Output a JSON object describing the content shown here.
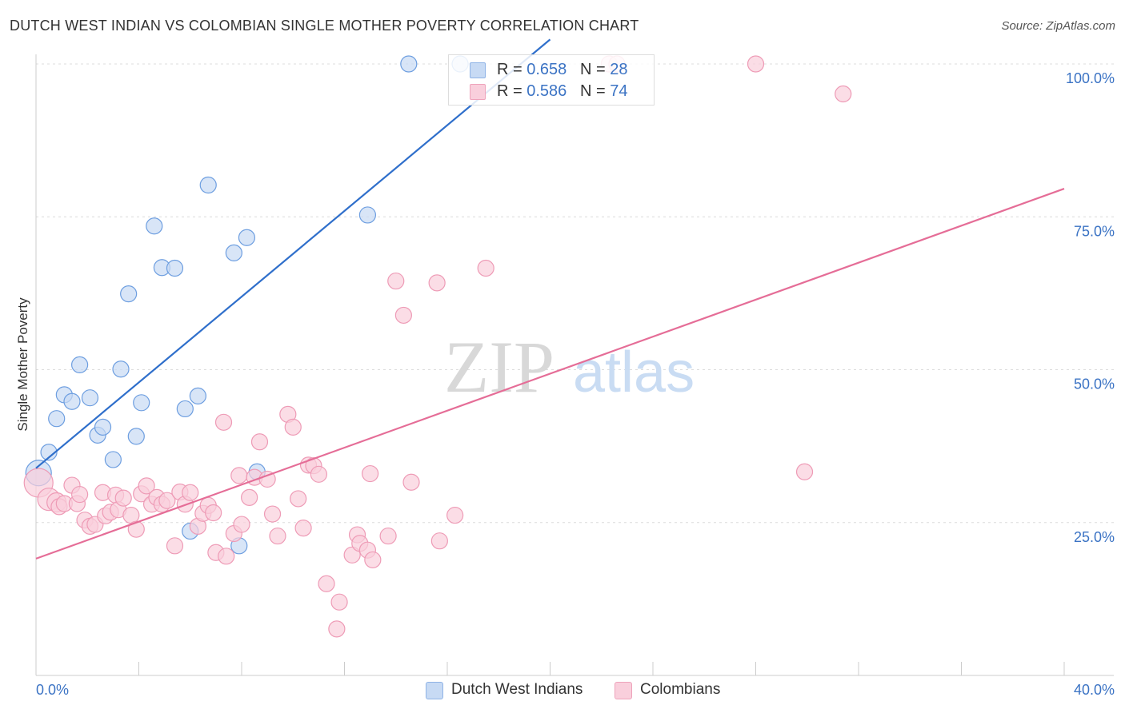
{
  "title": "DUTCH WEST INDIAN VS COLOMBIAN SINGLE MOTHER POVERTY CORRELATION CHART",
  "source": "Source: ZipAtlas.com",
  "watermark": {
    "zip": "ZIP",
    "atlas": "atlas"
  },
  "legend": {
    "r_label": "R =",
    "n_label": "N =",
    "rows": [
      {
        "r": "0.658",
        "n": "28",
        "color": "#adc8ee"
      },
      {
        "r": "0.586",
        "n": "74",
        "color": "#f4b6c8"
      }
    ]
  },
  "chart_data": {
    "type": "scatter",
    "title": "DUTCH WEST INDIAN VS COLOMBIAN SINGLE MOTHER POVERTY CORRELATION CHART",
    "xlabel": "",
    "ylabel": "Single Mother Poverty",
    "xlim": [
      0,
      40
    ],
    "ylim": [
      0,
      100
    ],
    "x_tick_labels": [
      "0.0%",
      "40.0%"
    ],
    "y_tick_labels": [
      "25.0%",
      "50.0%",
      "75.0%",
      "100.0%"
    ],
    "y_ticks": [
      25,
      50,
      75,
      100
    ],
    "grid": "horizontal dashed",
    "series": [
      {
        "name": "Dutch West Indians",
        "color": "#6d9ee0",
        "fill": "#c7daf4",
        "trend": {
          "x": [
            0,
            20.0
          ],
          "y": [
            33.9,
            104.0
          ],
          "color": "#2f6fcb"
        },
        "points": [
          [
            0.1,
            33.1,
            16
          ],
          [
            0.5,
            36.5,
            10
          ],
          [
            0.8,
            42.0,
            10
          ],
          [
            1.1,
            45.9,
            10
          ],
          [
            1.4,
            44.8,
            10
          ],
          [
            1.7,
            50.8,
            10
          ],
          [
            2.1,
            45.4,
            10
          ],
          [
            2.4,
            39.3,
            10
          ],
          [
            2.6,
            40.6,
            10
          ],
          [
            3.0,
            35.3,
            10
          ],
          [
            3.3,
            50.1,
            10
          ],
          [
            3.6,
            62.4,
            10
          ],
          [
            3.9,
            39.1,
            10
          ],
          [
            4.1,
            44.6,
            10
          ],
          [
            4.6,
            73.5,
            10
          ],
          [
            4.9,
            66.7,
            10
          ],
          [
            5.4,
            66.6,
            10
          ],
          [
            5.8,
            43.6,
            10
          ],
          [
            6.0,
            23.6,
            10
          ],
          [
            6.3,
            45.7,
            10
          ],
          [
            6.7,
            80.2,
            10
          ],
          [
            7.7,
            69.1,
            10
          ],
          [
            7.9,
            21.2,
            10
          ],
          [
            8.2,
            71.6,
            10
          ],
          [
            8.6,
            33.3,
            10
          ],
          [
            12.9,
            75.3,
            10
          ],
          [
            14.5,
            100.0,
            10
          ],
          [
            16.5,
            100.0,
            10
          ]
        ]
      },
      {
        "name": "Colombians",
        "color": "#ee9bb6",
        "fill": "#f9cfdc",
        "trend": {
          "x": [
            0,
            40.0
          ],
          "y": [
            19.1,
            79.6
          ],
          "color": "#e56d97"
        },
        "points": [
          [
            0.1,
            31.5,
            18
          ],
          [
            0.5,
            28.8,
            14
          ],
          [
            0.8,
            28.3,
            12
          ],
          [
            0.9,
            27.6,
            10
          ],
          [
            1.1,
            28.1,
            10
          ],
          [
            1.4,
            31.1,
            10
          ],
          [
            1.6,
            28.1,
            10
          ],
          [
            1.7,
            29.6,
            10
          ],
          [
            1.9,
            25.4,
            10
          ],
          [
            2.1,
            24.4,
            10
          ],
          [
            2.3,
            24.7,
            10
          ],
          [
            2.6,
            29.9,
            10
          ],
          [
            2.7,
            26.1,
            10
          ],
          [
            2.9,
            26.7,
            10
          ],
          [
            3.1,
            29.5,
            10
          ],
          [
            3.2,
            27.1,
            10
          ],
          [
            3.4,
            29.0,
            10
          ],
          [
            3.7,
            26.2,
            10
          ],
          [
            3.9,
            23.9,
            10
          ],
          [
            4.1,
            29.7,
            10
          ],
          [
            4.3,
            31.0,
            10
          ],
          [
            4.5,
            28.0,
            10
          ],
          [
            4.7,
            29.1,
            10
          ],
          [
            4.9,
            28.0,
            10
          ],
          [
            5.1,
            28.6,
            10
          ],
          [
            5.4,
            21.2,
            10
          ],
          [
            5.6,
            30.0,
            10
          ],
          [
            5.8,
            28.0,
            10
          ],
          [
            6.0,
            29.9,
            10
          ],
          [
            6.3,
            24.4,
            10
          ],
          [
            6.5,
            26.5,
            10
          ],
          [
            6.7,
            27.8,
            10
          ],
          [
            6.9,
            26.6,
            10
          ],
          [
            7.0,
            20.1,
            10
          ],
          [
            7.3,
            41.4,
            10
          ],
          [
            7.4,
            19.5,
            10
          ],
          [
            7.7,
            23.2,
            10
          ],
          [
            7.9,
            32.7,
            10
          ],
          [
            8.0,
            24.7,
            10
          ],
          [
            8.3,
            29.1,
            10
          ],
          [
            8.5,
            32.4,
            10
          ],
          [
            8.7,
            38.2,
            10
          ],
          [
            9.0,
            32.1,
            10
          ],
          [
            9.2,
            26.4,
            10
          ],
          [
            9.4,
            22.8,
            10
          ],
          [
            9.8,
            42.7,
            10
          ],
          [
            10.0,
            40.6,
            10
          ],
          [
            10.2,
            28.9,
            10
          ],
          [
            10.4,
            24.1,
            10
          ],
          [
            10.6,
            34.4,
            10
          ],
          [
            10.8,
            34.3,
            10
          ],
          [
            11.0,
            32.9,
            10
          ],
          [
            11.3,
            15.0,
            10
          ],
          [
            11.7,
            7.6,
            10
          ],
          [
            11.8,
            12.0,
            10
          ],
          [
            12.3,
            19.7,
            10
          ],
          [
            12.5,
            23.0,
            10
          ],
          [
            12.6,
            21.6,
            10
          ],
          [
            12.9,
            20.5,
            10
          ],
          [
            13.0,
            33.0,
            10
          ],
          [
            13.1,
            18.9,
            10
          ],
          [
            13.7,
            22.8,
            10
          ],
          [
            14.0,
            64.5,
            10
          ],
          [
            14.3,
            58.9,
            10
          ],
          [
            14.6,
            31.6,
            10
          ],
          [
            15.6,
            64.2,
            10
          ],
          [
            15.7,
            22.0,
            10
          ],
          [
            16.3,
            26.2,
            10
          ],
          [
            17.5,
            66.6,
            10
          ],
          [
            22.3,
            100.0,
            10
          ],
          [
            22.6,
            100.0,
            10
          ],
          [
            28.0,
            100.0,
            10
          ],
          [
            29.9,
            33.3,
            10
          ],
          [
            31.4,
            95.1,
            10
          ]
        ]
      }
    ]
  }
}
